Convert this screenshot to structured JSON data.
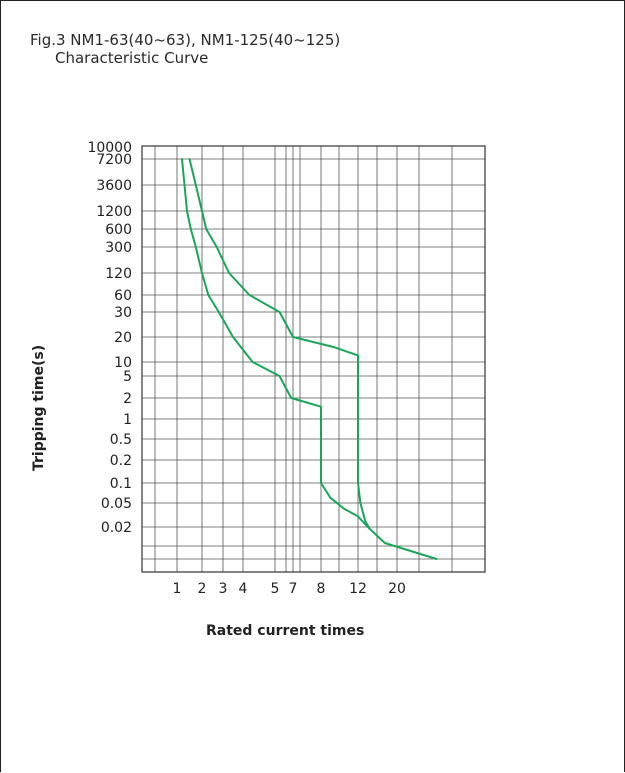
{
  "chart_data": {
    "type": "line",
    "title": "Fig.3 NM1-63(40~63), NM1-125(40~125)",
    "subtitle": "Characteristic Curve",
    "xlabel": "Rated current times",
    "ylabel": "Tripping time(s)",
    "x_ticks": [
      "1",
      "2",
      "3",
      "4",
      "5",
      "7",
      "8",
      "12",
      "20"
    ],
    "y_ticks": [
      "10000",
      "7200",
      "3600",
      "1200",
      "600",
      "300",
      "120",
      "60",
      "30",
      "20",
      "10",
      "5",
      "2",
      "1",
      "0.5",
      "0.2",
      "0.1",
      "0.05",
      "0.02"
    ],
    "grid": true,
    "series": [
      {
        "color": "#1aa657",
        "points": [
          [
            1.2,
            7200
          ],
          [
            1.3,
            3600
          ],
          [
            1.4,
            1200
          ],
          [
            1.55,
            600
          ],
          [
            1.75,
            300
          ],
          [
            2.0,
            120
          ],
          [
            2.3,
            60
          ],
          [
            2.8,
            30
          ],
          [
            3.5,
            20
          ],
          [
            4.3,
            10
          ],
          [
            5.5,
            5
          ],
          [
            6.8,
            2
          ],
          [
            8.0,
            1.5
          ],
          [
            8.0,
            0.1
          ],
          [
            9.0,
            0.06
          ],
          [
            10.5,
            0.04
          ],
          [
            12.0,
            0.03
          ],
          [
            14.0,
            0.02
          ],
          [
            17.5,
            0.01
          ],
          [
            24.5,
            0.005
          ]
        ]
      },
      {
        "color": "#1aa657",
        "points": [
          [
            1.5,
            7200
          ],
          [
            1.75,
            3600
          ],
          [
            2.0,
            1200
          ],
          [
            2.2,
            600
          ],
          [
            2.7,
            300
          ],
          [
            3.3,
            120
          ],
          [
            4.2,
            60
          ],
          [
            5.5,
            30
          ],
          [
            7.0,
            20
          ],
          [
            9.5,
            15
          ],
          [
            12.0,
            12
          ],
          [
            12.0,
            0.1
          ],
          [
            12.5,
            0.05
          ],
          [
            13.5,
            0.025
          ],
          [
            14.2,
            0.02
          ]
        ]
      }
    ]
  }
}
